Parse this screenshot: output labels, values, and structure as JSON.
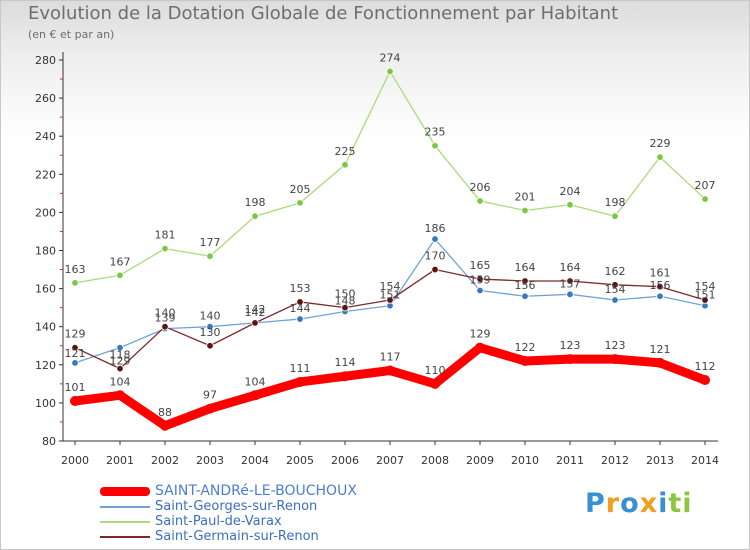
{
  "header": {
    "title": "Evolution de la Dotation Globale de Fonctionnement par Habitant",
    "subtitle": "(en € et par an)"
  },
  "logo": {
    "letters": [
      {
        "ch": "P",
        "color": "#3a8fd0"
      },
      {
        "ch": "r",
        "color": "#f0a020"
      },
      {
        "ch": "o",
        "color": "#3a8fd0"
      },
      {
        "ch": "x",
        "color": "#f0a020"
      },
      {
        "ch": "i",
        "color": "#3a8fd0"
      },
      {
        "ch": "t",
        "color": "#8cc63e"
      },
      {
        "ch": "i",
        "color": "#8cc63e"
      }
    ]
  },
  "chart_data": {
    "type": "line",
    "title": "Evolution de la Dotation Globale de Fonctionnement par Habitant",
    "subtitle": "(en € et par an)",
    "xlabel": "",
    "ylabel": "",
    "categories": [
      "2000",
      "2001",
      "2002",
      "2003",
      "2004",
      "2005",
      "2006",
      "2007",
      "2008",
      "2009",
      "2010",
      "2011",
      "2012",
      "2013",
      "2014"
    ],
    "ylim": [
      80,
      280
    ],
    "yticks": [
      80,
      100,
      120,
      140,
      160,
      180,
      200,
      220,
      240,
      260,
      280
    ],
    "grid": false,
    "legend": "bottom-left",
    "series": [
      {
        "name": "SAINT-ANDRé-LE-BOUCHOUX",
        "color": "#ff0000",
        "marker": "#ff0000",
        "values": [
          101,
          104,
          88,
          97,
          104,
          111,
          114,
          117,
          110,
          129,
          122,
          123,
          123,
          121,
          112
        ],
        "emphasis": true
      },
      {
        "name": "Saint-Georges-sur-Renon",
        "color": "#6fa3d8",
        "marker": "#3a78c0",
        "values": [
          121,
          129,
          139,
          140,
          142,
          144,
          148,
          151,
          186,
          159,
          156,
          157,
          154,
          156,
          151
        ],
        "emphasis": false
      },
      {
        "name": "Saint-Paul-de-Varax",
        "color": "#a8dc78",
        "marker": "#7cc846",
        "values": [
          163,
          167,
          181,
          177,
          198,
          205,
          225,
          274,
          235,
          206,
          201,
          204,
          198,
          229,
          207
        ],
        "emphasis": false
      },
      {
        "name": "Saint-Germain-sur-Renon",
        "color": "#7a2a2a",
        "marker": "#5a1414",
        "values": [
          129,
          118,
          140,
          130,
          142,
          153,
          150,
          154,
          170,
          165,
          164,
          164,
          162,
          161,
          154
        ],
        "emphasis": false
      }
    ]
  }
}
